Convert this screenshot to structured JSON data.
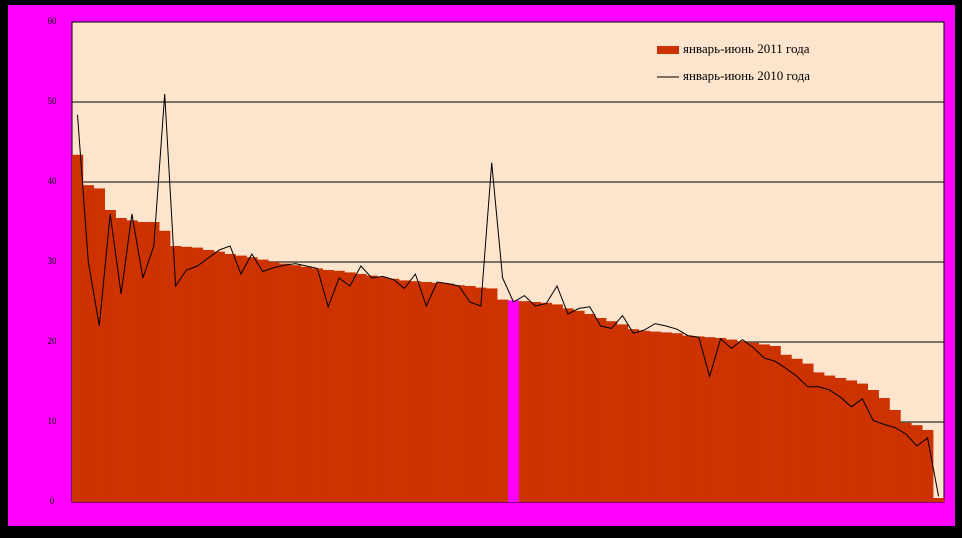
{
  "chart_data": {
    "type": "bar",
    "ylim": [
      0,
      60
    ],
    "yticks": [
      0,
      10,
      20,
      30,
      40,
      50,
      60
    ],
    "grid": true,
    "legend": "top-right",
    "categories": [
      null,
      null,
      null,
      null,
      null,
      null,
      null,
      null,
      null,
      null,
      null,
      null,
      null,
      null,
      null,
      null,
      null,
      null,
      null,
      null,
      null,
      null,
      null,
      null,
      null,
      null,
      null,
      null,
      null,
      null,
      null,
      null,
      null,
      null,
      null,
      null,
      null,
      null,
      null,
      null,
      null,
      null,
      null,
      null,
      null,
      null,
      null,
      null,
      null,
      null,
      null,
      null,
      null,
      null,
      null,
      null,
      null,
      null,
      null,
      null,
      null,
      null,
      null,
      null,
      null,
      null,
      null,
      null,
      null,
      null,
      null,
      null,
      null,
      null,
      null,
      null,
      null,
      null,
      null,
      null
    ],
    "series": [
      {
        "name": "январь-июнь 2011 года",
        "type": "bar",
        "color": "#cc3300",
        "colors": [
          "#cc3300",
          "#cc3300",
          "#cc3300",
          "#cc3300",
          "#cc3300",
          "#cc3300",
          "#cc3300",
          "#cc3300",
          "#cc3300",
          "#cc3300",
          "#cc3300",
          "#cc3300",
          "#cc3300",
          "#cc3300",
          "#cc3300",
          "#cc3300",
          "#cc3300",
          "#cc3300",
          "#cc3300",
          "#cc3300",
          "#cc3300",
          "#cc3300",
          "#cc3300",
          "#cc3300",
          "#cc3300",
          "#cc3300",
          "#cc3300",
          "#cc3300",
          "#cc3300",
          "#cc3300",
          "#cc3300",
          "#cc3300",
          "#cc3300",
          "#cc3300",
          "#cc3300",
          "#cc3300",
          "#cc3300",
          "#cc3300",
          "#cc3300",
          "#cc3300",
          "#ff00ff",
          "#cc3300",
          "#cc3300",
          "#cc3300",
          "#cc3300",
          "#cc3300",
          "#cc3300",
          "#cc3300",
          "#cc3300",
          "#cc3300",
          "#cc3300",
          "#cc3300",
          "#cc3300",
          "#cc3300",
          "#cc3300",
          "#cc3300",
          "#cc3300",
          "#cc3300",
          "#cc3300",
          "#cc3300",
          "#cc3300",
          "#cc3300",
          "#cc3300",
          "#cc3300",
          "#cc3300",
          "#cc3300",
          "#cc3300",
          "#cc3300",
          "#cc3300",
          "#cc3300",
          "#cc3300",
          "#cc3300",
          "#cc3300",
          "#cc3300",
          "#cc3300",
          "#cc3300",
          "#cc3300",
          "#cc3300",
          "#cc3300",
          "#cc3300"
        ],
        "values": [
          43.4,
          39.6,
          39.2,
          36.5,
          35.5,
          35.2,
          35.0,
          35.0,
          33.9,
          32.0,
          31.9,
          31.8,
          31.5,
          31.3,
          31.0,
          30.8,
          30.6,
          30.3,
          30.0,
          29.8,
          29.6,
          29.4,
          29.2,
          29.0,
          28.9,
          28.7,
          28.5,
          28.3,
          28.1,
          27.9,
          27.7,
          27.6,
          27.5,
          27.4,
          27.3,
          27.1,
          27.0,
          26.8,
          26.7,
          25.3,
          25.2,
          25.1,
          25.0,
          24.9,
          24.7,
          24.2,
          23.9,
          23.5,
          23.0,
          22.6,
          22.2,
          21.6,
          21.4,
          21.3,
          21.2,
          21.1,
          20.8,
          20.7,
          20.6,
          20.5,
          20.3,
          20.1,
          19.9,
          19.7,
          19.5,
          18.4,
          17.9,
          17.3,
          16.2,
          15.8,
          15.5,
          15.2,
          14.8,
          14.0,
          13.0,
          11.5,
          9.9,
          9.6,
          9.0,
          0.5
        ]
      },
      {
        "name": "январь-июнь 2010 года",
        "type": "line",
        "color": "#000000",
        "values": [
          48.4,
          30,
          22,
          36,
          26,
          36,
          28,
          32,
          51,
          27,
          29,
          29.5,
          30.5,
          31.5,
          32,
          28.5,
          31,
          28.8,
          29.3,
          29.6,
          29.8,
          29.5,
          29.2,
          24.4,
          28,
          27,
          29.5,
          28,
          28.2,
          27.8,
          26.7,
          28.5,
          24.5,
          27.5,
          27.3,
          27,
          25,
          24.5,
          42.4,
          28,
          25,
          25.8,
          24.5,
          24.8,
          27,
          23.5,
          24.2,
          24.4,
          22,
          21.7,
          23.3,
          21.1,
          21.5,
          22.3,
          22.0,
          21.6,
          20.8,
          20.6,
          15.7,
          20.4,
          19.2,
          20.3,
          19.3,
          18.0,
          17.6,
          16.7,
          15.7,
          14.4,
          14.4,
          14.0,
          13.1,
          11.9,
          12.9,
          10.2,
          9.7,
          9.3,
          8.5,
          7.0,
          8.0,
          0.7
        ]
      }
    ]
  }
}
